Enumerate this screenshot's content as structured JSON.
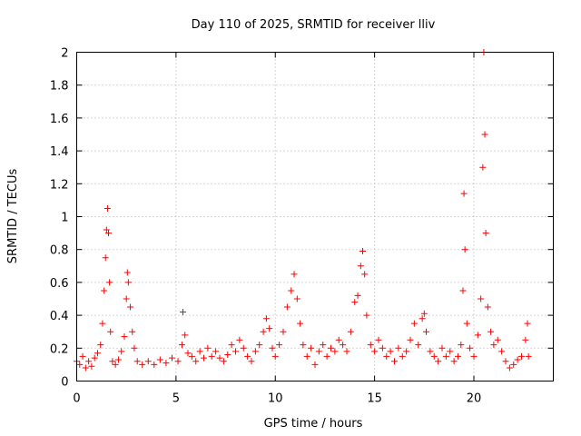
{
  "chart_data": {
    "type": "scatter",
    "title": "Day 110 of 2025, SRMTID for receiver lliv",
    "xlabel": "GPS time / hours",
    "ylabel": "SRMTID / TECUs",
    "xlim": [
      0,
      24
    ],
    "ylim": [
      0,
      2
    ],
    "xticks": [
      0,
      5,
      10,
      15,
      20
    ],
    "xtick_labels": [
      "0",
      "5",
      "10",
      "15",
      "20"
    ],
    "yticks": [
      0,
      0.2,
      0.4,
      0.6,
      0.8,
      1,
      1.2,
      1.4,
      1.6,
      1.8,
      2
    ],
    "ytick_labels": [
      "0",
      "0.2",
      "0.4",
      "0.6",
      "0.8",
      "1",
      "1.2",
      "1.4",
      "1.6",
      "1.8",
      "2"
    ],
    "grid": true,
    "marker": "+",
    "color": "#ff0000",
    "series": [
      {
        "name": "SRMTID",
        "points": [
          [
            0.0,
            0.12
          ],
          [
            0.15,
            0.1
          ],
          [
            0.3,
            0.15
          ],
          [
            0.45,
            0.08
          ],
          [
            0.6,
            0.12
          ],
          [
            0.75,
            0.09
          ],
          [
            0.9,
            0.14
          ],
          [
            1.05,
            0.17
          ],
          [
            1.2,
            0.22
          ],
          [
            1.3,
            0.35
          ],
          [
            1.38,
            0.55
          ],
          [
            1.45,
            0.75
          ],
          [
            1.5,
            0.92
          ],
          [
            1.55,
            1.05
          ],
          [
            1.6,
            0.9
          ],
          [
            1.65,
            0.6
          ],
          [
            1.7,
            0.3
          ],
          [
            1.8,
            0.12
          ],
          [
            1.95,
            0.1
          ],
          [
            2.1,
            0.13
          ],
          [
            2.25,
            0.18
          ],
          [
            2.4,
            0.27
          ],
          [
            2.5,
            0.5
          ],
          [
            2.55,
            0.66
          ],
          [
            2.6,
            0.6
          ],
          [
            2.7,
            0.45
          ],
          [
            2.8,
            0.3
          ],
          [
            2.9,
            0.2
          ],
          [
            3.05,
            0.12
          ],
          [
            3.3,
            0.1
          ],
          [
            3.6,
            0.12
          ],
          [
            3.9,
            0.1
          ],
          [
            4.2,
            0.13
          ],
          [
            4.5,
            0.11
          ],
          [
            4.8,
            0.14
          ],
          [
            5.1,
            0.12
          ],
          [
            5.3,
            0.22
          ],
          [
            5.35,
            0.42
          ],
          [
            5.45,
            0.28
          ],
          [
            5.6,
            0.17
          ],
          [
            5.8,
            0.15
          ],
          [
            6.0,
            0.12
          ],
          [
            6.2,
            0.18
          ],
          [
            6.4,
            0.14
          ],
          [
            6.6,
            0.2
          ],
          [
            6.8,
            0.15
          ],
          [
            7.0,
            0.18
          ],
          [
            7.2,
            0.14
          ],
          [
            7.4,
            0.12
          ],
          [
            7.6,
            0.16
          ],
          [
            7.8,
            0.22
          ],
          [
            8.0,
            0.18
          ],
          [
            8.2,
            0.25
          ],
          [
            8.4,
            0.2
          ],
          [
            8.6,
            0.15
          ],
          [
            8.8,
            0.12
          ],
          [
            9.0,
            0.18
          ],
          [
            9.2,
            0.22
          ],
          [
            9.4,
            0.3
          ],
          [
            9.55,
            0.38
          ],
          [
            9.7,
            0.32
          ],
          [
            9.85,
            0.2
          ],
          [
            10.0,
            0.15
          ],
          [
            10.2,
            0.22
          ],
          [
            10.4,
            0.3
          ],
          [
            10.6,
            0.45
          ],
          [
            10.8,
            0.55
          ],
          [
            10.95,
            0.65
          ],
          [
            11.1,
            0.5
          ],
          [
            11.25,
            0.35
          ],
          [
            11.4,
            0.22
          ],
          [
            11.6,
            0.15
          ],
          [
            11.8,
            0.2
          ],
          [
            12.0,
            0.1
          ],
          [
            12.2,
            0.18
          ],
          [
            12.4,
            0.22
          ],
          [
            12.6,
            0.15
          ],
          [
            12.8,
            0.2
          ],
          [
            13.0,
            0.18
          ],
          [
            13.2,
            0.25
          ],
          [
            13.4,
            0.22
          ],
          [
            13.6,
            0.18
          ],
          [
            13.8,
            0.3
          ],
          [
            14.0,
            0.48
          ],
          [
            14.15,
            0.52
          ],
          [
            14.3,
            0.7
          ],
          [
            14.4,
            0.79
          ],
          [
            14.5,
            0.65
          ],
          [
            14.6,
            0.4
          ],
          [
            14.8,
            0.22
          ],
          [
            15.0,
            0.18
          ],
          [
            15.2,
            0.25
          ],
          [
            15.4,
            0.2
          ],
          [
            15.6,
            0.15
          ],
          [
            15.8,
            0.18
          ],
          [
            16.0,
            0.12
          ],
          [
            16.2,
            0.2
          ],
          [
            16.4,
            0.15
          ],
          [
            16.6,
            0.18
          ],
          [
            16.8,
            0.25
          ],
          [
            17.0,
            0.35
          ],
          [
            17.2,
            0.22
          ],
          [
            17.4,
            0.38
          ],
          [
            17.5,
            0.41
          ],
          [
            17.6,
            0.3
          ],
          [
            17.8,
            0.18
          ],
          [
            18.0,
            0.15
          ],
          [
            18.2,
            0.12
          ],
          [
            18.4,
            0.2
          ],
          [
            18.6,
            0.15
          ],
          [
            18.8,
            0.18
          ],
          [
            19.0,
            0.12
          ],
          [
            19.2,
            0.15
          ],
          [
            19.35,
            0.22
          ],
          [
            19.45,
            0.55
          ],
          [
            19.5,
            1.14
          ],
          [
            19.55,
            0.8
          ],
          [
            19.65,
            0.35
          ],
          [
            19.8,
            0.2
          ],
          [
            20.0,
            0.15
          ],
          [
            20.2,
            0.28
          ],
          [
            20.35,
            0.5
          ],
          [
            20.45,
            1.3
          ],
          [
            20.5,
            2.0
          ],
          [
            20.55,
            1.5
          ],
          [
            20.6,
            0.9
          ],
          [
            20.7,
            0.45
          ],
          [
            20.85,
            0.3
          ],
          [
            21.0,
            0.22
          ],
          [
            21.2,
            0.25
          ],
          [
            21.4,
            0.18
          ],
          [
            21.6,
            0.12
          ],
          [
            21.8,
            0.08
          ],
          [
            22.0,
            0.1
          ],
          [
            22.2,
            0.13
          ],
          [
            22.4,
            0.15
          ],
          [
            22.6,
            0.25
          ],
          [
            22.7,
            0.35
          ],
          [
            22.75,
            0.15
          ]
        ]
      }
    ]
  }
}
